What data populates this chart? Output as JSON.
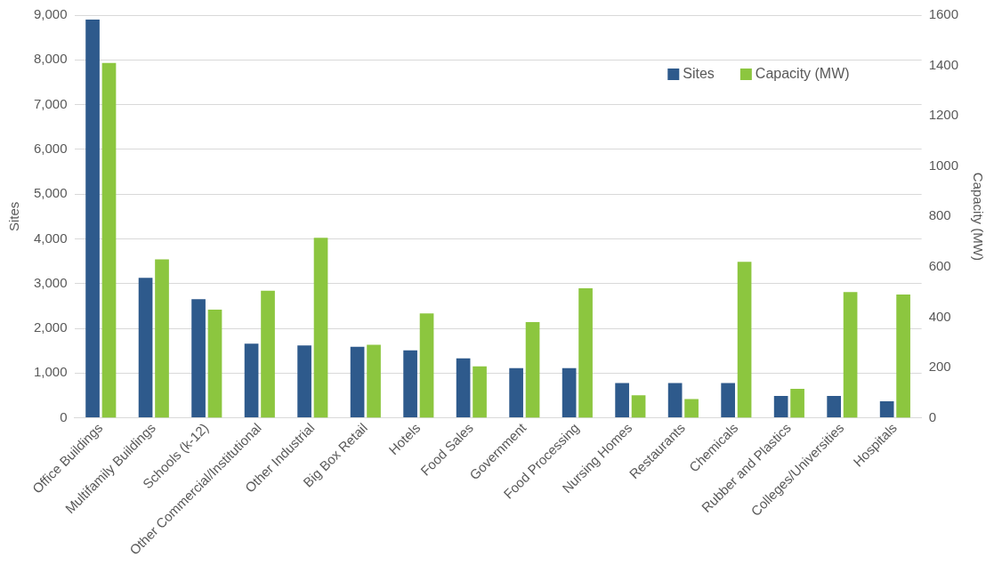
{
  "chart_data": {
    "type": "bar",
    "ylabel": "Sites",
    "y2label": "Capacity (MW)",
    "categories": [
      "Office Buildings",
      "Multifamily Buildings",
      "Schools (k-12)",
      "Other Commercial/Institutional",
      "Other Industrial",
      "Big Box Retail",
      "Hotels",
      "Food Sales",
      "Government",
      "Food Processing",
      "Nursing Homes",
      "Restaurants",
      "Chemicals",
      "Rubber and Plastics",
      "Colleges/Universities",
      "Hospitals"
    ],
    "series": [
      {
        "name": "Sites",
        "color": "#2e5a8c",
        "values": [
          8900,
          3130,
          2650,
          1660,
          1620,
          1590,
          1510,
          1330,
          1110,
          1110,
          780,
          780,
          780,
          490,
          490,
          370
        ]
      },
      {
        "name": "Capacity (MW)",
        "color": "#8cc63f",
        "axis": "y2",
        "values": [
          1410,
          630,
          430,
          505,
          715,
          290,
          415,
          205,
          380,
          515,
          90,
          75,
          620,
          115,
          500,
          490
        ]
      }
    ],
    "ylim": [
      0,
      9000
    ],
    "yticks": [
      {
        "value": 0,
        "label": "0"
      },
      {
        "value": 1000,
        "label": "1,000"
      },
      {
        "value": 2000,
        "label": "2,000"
      },
      {
        "value": 3000,
        "label": "3,000"
      },
      {
        "value": 4000,
        "label": "4,000"
      },
      {
        "value": 5000,
        "label": "5,000"
      },
      {
        "value": 6000,
        "label": "6,000"
      },
      {
        "value": 7000,
        "label": "7,000"
      },
      {
        "value": 8000,
        "label": "8,000"
      },
      {
        "value": 9000,
        "label": "9,000"
      }
    ],
    "y2lim": [
      0,
      1600
    ],
    "y2ticks": [
      0,
      200,
      400,
      600,
      800,
      1000,
      1200,
      1400,
      1600
    ],
    "grid": "y",
    "legend": "top right"
  }
}
